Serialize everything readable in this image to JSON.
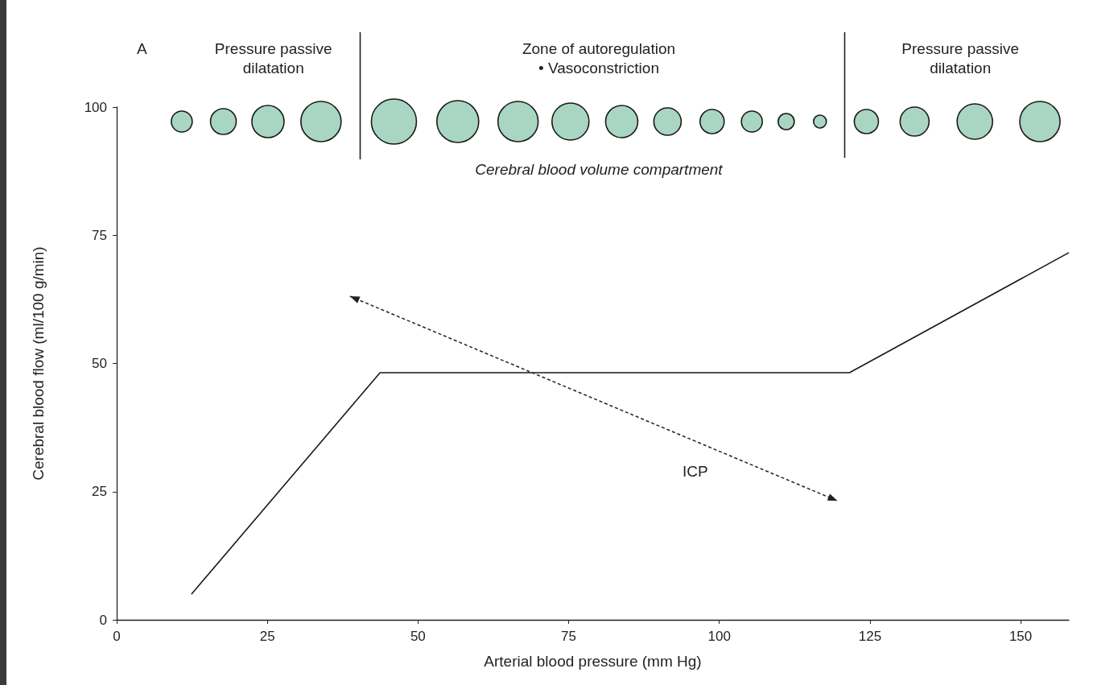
{
  "chart_data": {
    "type": "line",
    "xlabel": "Arterial blood pressure (mm Hg)",
    "ylabel": "Cerebral blood flow (ml/100 g/min)",
    "x": [
      12.4,
      43.7,
      121.6,
      158
    ],
    "series": [
      {
        "color": "#1a1a1a",
        "values": [
          5,
          48.2,
          48.2,
          71.6
        ]
      }
    ],
    "xlim": [
      0,
      158
    ],
    "xticks": [
      0,
      25,
      50,
      75,
      100,
      125,
      150
    ],
    "ylim": [
      0,
      100
    ],
    "yticks": [
      0,
      25,
      50,
      75,
      100
    ],
    "grid": false,
    "marker": "none",
    "line_style": "solid",
    "annotations": [
      "A",
      "Pressure passive\ndilatation",
      "Zone of autoregulation\n• Vasoconstriction",
      "Pressure passive\ndilatation",
      "Cerebral blood volume compartment",
      "ICP"
    ]
  }
}
